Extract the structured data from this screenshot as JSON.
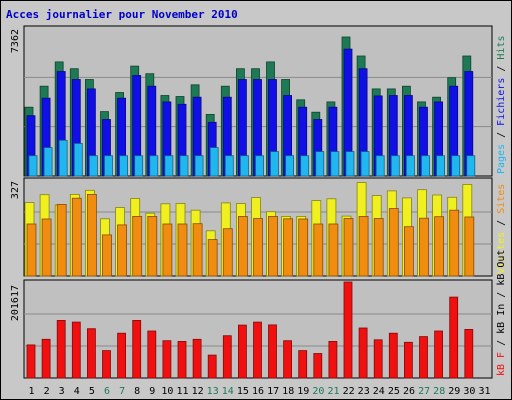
{
  "chart_data": {
    "type": "bar",
    "title": "Acces journalier pour November 2010",
    "categories": [
      "1",
      "2",
      "3",
      "4",
      "5",
      "6",
      "7",
      "8",
      "9",
      "10",
      "11",
      "12",
      "13",
      "14",
      "15",
      "16",
      "17",
      "18",
      "19",
      "20",
      "21",
      "22",
      "23",
      "24",
      "25",
      "26",
      "27",
      "28",
      "29",
      "30",
      "31"
    ],
    "weekend_days": [
      "6",
      "7",
      "13",
      "14",
      "20",
      "21",
      "27",
      "28"
    ],
    "panels": [
      {
        "id": "top",
        "y_max_label": "7362",
        "ylim": [
          0,
          7362
        ],
        "legend": [
          "Pages",
          "Fichiers",
          "Hits"
        ],
        "series": [
          {
            "name": "Hits",
            "color": "#1e7a55",
            "values": [
              3424,
              4469,
              5676,
              5335,
              4802,
              3205,
              4154,
              5468,
              5091,
              4002,
              3955,
              4535,
              3065,
              4469,
              5335,
              5335,
              5676,
              4802,
              3790,
              3172,
              3684,
              6913,
              5968,
              4335,
              4335,
              4469,
              3684,
              3922,
              4890,
              5968,
              0
            ]
          },
          {
            "name": "Fichiers",
            "color": "#1010e6",
            "values": [
              2998,
              3870,
              5196,
              4802,
              4335,
              2812,
              3870,
              4999,
              4469,
              3684,
              3565,
              3922,
              2672,
              3922,
              4802,
              4802,
              4802,
              4002,
              3422,
              2812,
              3422,
              6313,
              5335,
              3982,
              4002,
              4002,
              3422,
              3684,
              4469,
              5196,
              0
            ]
          },
          {
            "name": "Pages",
            "color": "#20b6f0",
            "values": [
              1012,
              1412,
              1778,
              1618,
              1012,
              1012,
              1012,
              1012,
              1012,
              1012,
              1012,
              1012,
              1412,
              1012,
              1012,
              1012,
              1212,
              1012,
              1012,
              1212,
              1212,
              1212,
              1212,
              1012,
              1012,
              1012,
              1012,
              1012,
              1012,
              1012,
              0
            ]
          }
        ]
      },
      {
        "id": "middle",
        "y_max_label": "327",
        "ylim": [
          0,
          327
        ],
        "legend": [
          "Visites",
          "Sites"
        ],
        "series": [
          {
            "name": "Visites",
            "color": "#f0f020",
            "values": [
              250,
              277,
              242,
              278,
              292,
              195,
              233,
              264,
              214,
              246,
              247,
              224,
              154,
              249,
              247,
              267,
              219,
              203,
              203,
              257,
              263,
              204,
              318,
              274,
              290,
              266,
              294,
              276,
              268,
              312,
              0
            ]
          },
          {
            "name": "Sites",
            "color": "#f08c10",
            "values": [
              177,
              194,
              244,
              265,
              278,
              140,
              174,
              203,
              203,
              177,
              177,
              178,
              124,
              161,
              203,
              196,
              203,
              195,
              194,
              177,
              177,
              196,
              203,
              196,
              230,
              168,
              197,
              202,
              224,
              201,
              0
            ]
          }
        ]
      },
      {
        "id": "bottom",
        "y_max_label": "201617",
        "ylim": [
          0,
          201617
        ],
        "legend": [
          "kB F",
          "kB In",
          "kB Out"
        ],
        "series": [
          {
            "name": "kB F",
            "color": "#f01010",
            "values": [
              69500,
              81200,
              121000,
              117300,
              103500,
              57500,
              94000,
              121000,
              98800,
              78400,
              76800,
              81200,
              48000,
              88800,
              111000,
              117300,
              111600,
              78400,
              57500,
              51400,
              76800,
              201617,
              105000,
              80200,
              94000,
              75000,
              87000,
              98700,
              170000,
              102000,
              0
            ]
          }
        ]
      }
    ]
  }
}
